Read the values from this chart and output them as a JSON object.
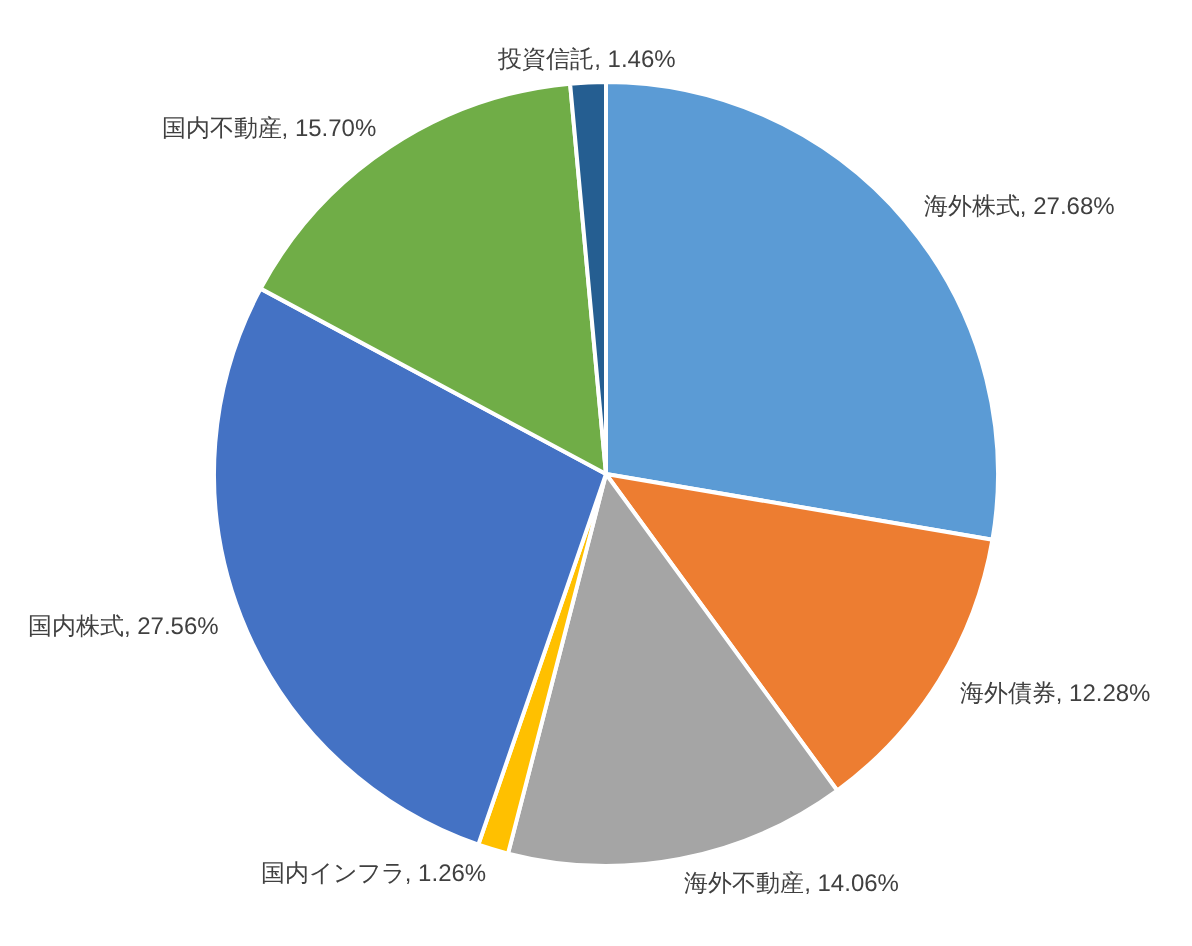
{
  "chart_data": {
    "type": "pie",
    "categories": [
      "海外株式",
      "海外債券",
      "海外不動産",
      "国内インフラ",
      "国内株式",
      "国内不動産",
      "投資信託"
    ],
    "values": [
      27.68,
      12.28,
      14.06,
      1.26,
      27.56,
      15.7,
      1.46
    ],
    "colors": [
      "#5b9bd5",
      "#ed7d31",
      "#a5a5a5",
      "#ffc000",
      "#4472c4",
      "#70ad47",
      "#255e91"
    ],
    "value_labels": [
      "27.68%",
      "12.28%",
      "14.06%",
      "1.26%",
      "27.56%",
      "15.70%",
      "1.46%"
    ]
  }
}
